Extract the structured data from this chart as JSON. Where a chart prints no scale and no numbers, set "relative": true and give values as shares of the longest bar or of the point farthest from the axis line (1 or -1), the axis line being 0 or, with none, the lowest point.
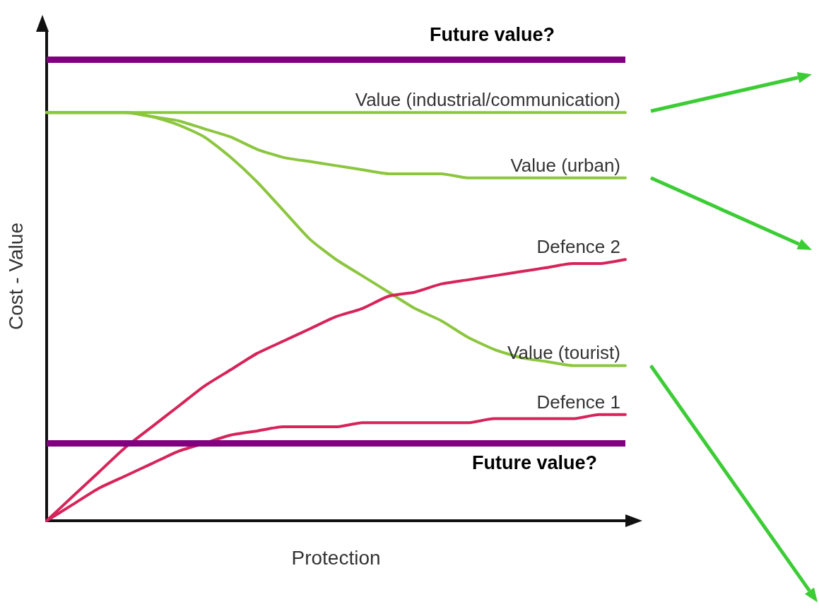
{
  "chart_data": {
    "type": "line",
    "relative": true,
    "xlabel": "Protection",
    "ylabel": "Cost - Value",
    "legend": false,
    "grid": false,
    "marker": "none",
    "line_style": "solid",
    "categories": [
      null,
      null,
      null,
      null,
      null,
      null,
      null,
      null,
      null,
      null,
      null,
      null,
      null,
      null,
      null,
      null,
      null,
      null,
      null,
      null,
      null,
      null,
      null
    ],
    "series": [
      {
        "name": "Value (industrial/communication)",
        "color": "#8cc63f",
        "values": [
          1,
          1,
          1,
          1,
          1,
          1,
          1,
          1,
          1,
          1,
          1,
          1,
          1,
          1,
          1,
          1,
          1,
          1,
          1,
          1,
          1,
          1,
          1
        ]
      },
      {
        "name": "Value (urban)",
        "color": "#8cc63f",
        "values": [
          1,
          1,
          1,
          1,
          0.99,
          0.98,
          0.96,
          0.94,
          0.91,
          0.89,
          0.88,
          0.87,
          0.86,
          0.85,
          0.85,
          0.85,
          0.84,
          0.84,
          0.84,
          0.84,
          0.84,
          0.84,
          0.84
        ]
      },
      {
        "name": "Value (tourist)",
        "color": "#8cc63f",
        "values": [
          1,
          1,
          1,
          1,
          0.99,
          0.97,
          0.94,
          0.89,
          0.83,
          0.76,
          0.69,
          0.64,
          0.6,
          0.56,
          0.52,
          0.49,
          0.45,
          0.42,
          0.4,
          0.39,
          0.38,
          0.38,
          0.38
        ]
      },
      {
        "name": "Defence 2",
        "color": "#d6245a",
        "values": [
          0,
          0.06,
          0.12,
          0.18,
          0.23,
          0.28,
          0.33,
          0.37,
          0.41,
          0.44,
          0.47,
          0.5,
          0.52,
          0.55,
          0.56,
          0.58,
          0.59,
          0.6,
          0.61,
          0.62,
          0.63,
          0.63,
          0.64
        ]
      },
      {
        "name": "Defence 1",
        "color": "#d6245a",
        "values": [
          0,
          0.04,
          0.08,
          0.11,
          0.14,
          0.17,
          0.19,
          0.21,
          0.22,
          0.23,
          0.23,
          0.23,
          0.24,
          0.24,
          0.24,
          0.24,
          0.24,
          0.25,
          0.25,
          0.25,
          0.25,
          0.26,
          0.26
        ]
      }
    ],
    "ref_lines": [
      {
        "axis": "y",
        "value": 1.13,
        "label": "Future value?",
        "color": "#800080"
      },
      {
        "axis": "y",
        "value": 0.19,
        "label": "Future value?",
        "color": "#800080"
      }
    ]
  }
}
